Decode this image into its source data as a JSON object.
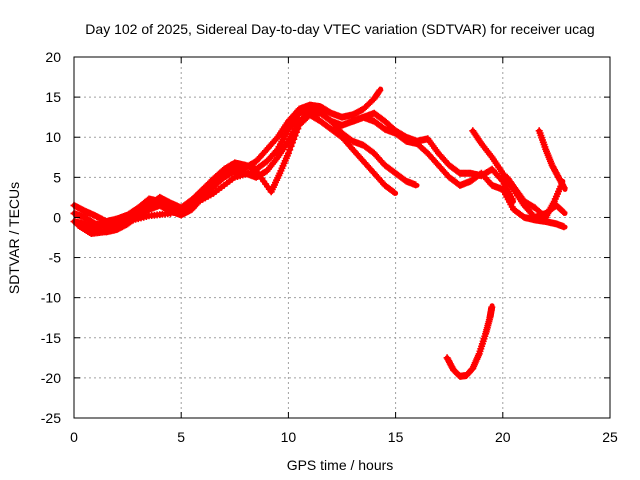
{
  "chart_data": {
    "type": "scatter",
    "title": "Day 102 of 2025, Sidereal Day-to-day VTEC variation (SDTVAR) for receiver ucag",
    "xlabel": "GPS time / hours",
    "ylabel": "SDTVAR / TECUs",
    "xlim": [
      0,
      25
    ],
    "ylim": [
      -25,
      20
    ],
    "xticks": [
      0,
      5,
      10,
      15,
      20,
      25
    ],
    "yticks": [
      -25,
      -20,
      -15,
      -10,
      -5,
      0,
      5,
      10,
      15,
      20
    ],
    "grid": true,
    "legend": "none",
    "marker": "plus",
    "series_color": "#ff0000",
    "series": [
      {
        "name": "track-a",
        "points": [
          [
            0.0,
            1.5
          ],
          [
            0.5,
            0.8
          ],
          [
            1.0,
            0.2
          ],
          [
            1.5,
            -0.5
          ],
          [
            2.0,
            -0.2
          ],
          [
            2.5,
            0.3
          ],
          [
            3.0,
            1.2
          ],
          [
            3.5,
            2.3
          ],
          [
            4.0,
            2.0
          ],
          [
            4.5,
            1.0
          ],
          [
            5.0,
            0.5
          ],
          [
            5.5,
            1.8
          ],
          [
            6.0,
            3.0
          ],
          [
            6.5,
            4.2
          ],
          [
            7.0,
            5.5
          ],
          [
            7.5,
            6.5
          ],
          [
            8.0,
            6.2
          ],
          [
            8.5,
            7.0
          ],
          [
            9.0,
            8.5
          ],
          [
            9.5,
            10.0
          ],
          [
            10.0,
            12.0
          ],
          [
            10.5,
            13.5
          ],
          [
            11.0,
            14.0
          ],
          [
            11.5,
            13.8
          ],
          [
            12.0,
            13.0
          ],
          [
            12.5,
            12.5
          ],
          [
            13.0,
            12.8
          ],
          [
            13.5,
            13.5
          ],
          [
            14.0,
            14.8
          ],
          [
            14.3,
            16.0
          ]
        ]
      },
      {
        "name": "track-b",
        "points": [
          [
            0.0,
            0.5
          ],
          [
            0.5,
            0.0
          ],
          [
            1.0,
            -0.8
          ],
          [
            1.5,
            -1.0
          ],
          [
            2.0,
            -0.6
          ],
          [
            2.5,
            0.0
          ],
          [
            3.0,
            0.5
          ],
          [
            3.5,
            1.5
          ],
          [
            4.0,
            2.5
          ],
          [
            4.5,
            1.8
          ],
          [
            5.0,
            1.2
          ],
          [
            5.5,
            2.2
          ],
          [
            6.0,
            3.5
          ],
          [
            6.5,
            4.8
          ],
          [
            7.0,
            6.0
          ],
          [
            7.5,
            6.8
          ],
          [
            8.0,
            6.5
          ],
          [
            8.5,
            6.0
          ],
          [
            9.0,
            7.0
          ],
          [
            9.5,
            8.5
          ],
          [
            10.0,
            11.0
          ],
          [
            10.5,
            13.0
          ],
          [
            11.0,
            13.5
          ],
          [
            11.5,
            13.2
          ],
          [
            12.0,
            12.0
          ],
          [
            12.5,
            11.5
          ],
          [
            13.0,
            12.0
          ],
          [
            13.5,
            12.5
          ],
          [
            14.0,
            12.0
          ],
          [
            14.5,
            11.0
          ],
          [
            15.0,
            10.5
          ],
          [
            15.5,
            9.5
          ],
          [
            16.0,
            9.2
          ],
          [
            16.5,
            8.0
          ],
          [
            17.0,
            6.5
          ],
          [
            17.5,
            5.0
          ],
          [
            18.0,
            4.0
          ],
          [
            18.5,
            4.5
          ],
          [
            19.0,
            5.5
          ],
          [
            19.5,
            4.0
          ],
          [
            20.0,
            3.5
          ],
          [
            20.5,
            1.0
          ],
          [
            21.0,
            0.0
          ],
          [
            21.5,
            -0.3
          ],
          [
            22.0,
            -0.5
          ],
          [
            22.5,
            -0.8
          ],
          [
            22.9,
            -1.2
          ]
        ]
      },
      {
        "name": "track-c",
        "points": [
          [
            0.0,
            -0.5
          ],
          [
            0.5,
            -0.8
          ],
          [
            1.0,
            -1.5
          ],
          [
            1.5,
            -1.8
          ],
          [
            2.0,
            -1.5
          ],
          [
            2.5,
            -0.8
          ],
          [
            3.0,
            0.2
          ],
          [
            3.5,
            1.0
          ],
          [
            4.0,
            1.5
          ],
          [
            4.5,
            0.8
          ],
          [
            5.0,
            0.3
          ],
          [
            5.5,
            1.0
          ],
          [
            6.0,
            2.5
          ],
          [
            6.5,
            3.8
          ],
          [
            7.0,
            5.0
          ],
          [
            7.5,
            5.8
          ],
          [
            8.0,
            5.5
          ],
          [
            8.5,
            5.0
          ],
          [
            9.0,
            5.8
          ],
          [
            9.5,
            7.5
          ],
          [
            10.0,
            9.5
          ],
          [
            10.5,
            12.0
          ],
          [
            11.0,
            13.0
          ],
          [
            11.5,
            13.0
          ],
          [
            12.0,
            12.0
          ],
          [
            12.5,
            10.5
          ],
          [
            13.0,
            9.5
          ],
          [
            13.5,
            9.0
          ],
          [
            14.0,
            8.0
          ],
          [
            14.5,
            6.5
          ],
          [
            15.0,
            5.5
          ],
          [
            15.5,
            4.5
          ],
          [
            16.0,
            4.0
          ]
        ]
      },
      {
        "name": "track-d",
        "points": [
          [
            0.2,
            -1.0
          ],
          [
            0.8,
            -2.0
          ],
          [
            1.4,
            -1.8
          ],
          [
            2.0,
            -1.2
          ],
          [
            2.5,
            -0.5
          ],
          [
            3.5,
            0.2
          ],
          [
            4.5,
            0.5
          ],
          [
            5.5,
            1.5
          ],
          [
            6.5,
            3.0
          ],
          [
            7.5,
            5.0
          ],
          [
            8.5,
            5.8
          ],
          [
            9.2,
            3.2
          ],
          [
            9.6,
            5.5
          ],
          [
            10.0,
            8.0
          ],
          [
            10.5,
            11.5
          ],
          [
            11.0,
            12.8
          ],
          [
            11.5,
            12.0
          ],
          [
            12.0,
            11.0
          ],
          [
            12.5,
            10.0
          ],
          [
            13.0,
            8.5
          ],
          [
            13.5,
            7.0
          ],
          [
            14.0,
            5.5
          ],
          [
            14.5,
            4.0
          ],
          [
            15.0,
            3.0
          ]
        ]
      },
      {
        "name": "track-e",
        "points": [
          [
            13.0,
            12.0
          ],
          [
            13.5,
            12.5
          ],
          [
            14.0,
            13.0
          ],
          [
            14.5,
            12.0
          ],
          [
            15.0,
            10.8
          ],
          [
            15.5,
            10.0
          ],
          [
            16.0,
            9.5
          ],
          [
            16.5,
            9.8
          ],
          [
            17.0,
            8.0
          ],
          [
            17.5,
            6.5
          ],
          [
            18.0,
            5.5
          ],
          [
            18.5,
            5.5
          ],
          [
            19.0,
            5.2
          ],
          [
            19.5,
            6.0
          ],
          [
            20.0,
            4.5
          ],
          [
            20.5,
            2.0
          ]
        ]
      },
      {
        "name": "track-f",
        "points": [
          [
            18.6,
            10.8
          ],
          [
            19.0,
            9.2
          ],
          [
            19.5,
            7.5
          ],
          [
            20.0,
            5.5
          ],
          [
            20.5,
            3.5
          ],
          [
            21.0,
            1.5
          ],
          [
            21.5,
            0.0
          ],
          [
            22.0,
            0.5
          ],
          [
            22.5,
            1.5
          ],
          [
            22.9,
            0.5
          ]
        ]
      },
      {
        "name": "track-g",
        "points": [
          [
            21.7,
            10.8
          ],
          [
            22.0,
            8.5
          ],
          [
            22.3,
            6.5
          ],
          [
            22.6,
            5.0
          ],
          [
            22.9,
            3.5
          ]
        ]
      },
      {
        "name": "track-h",
        "points": [
          [
            20.2,
            5.0
          ],
          [
            20.6,
            3.5
          ],
          [
            21.0,
            2.0
          ],
          [
            21.5,
            1.2
          ],
          [
            22.0,
            0.0
          ],
          [
            22.4,
            2.0
          ],
          [
            22.8,
            4.5
          ]
        ]
      },
      {
        "name": "track-i",
        "points": [
          [
            17.4,
            -17.5
          ],
          [
            17.7,
            -19.0
          ],
          [
            18.0,
            -19.8
          ],
          [
            18.3,
            -19.7
          ],
          [
            18.6,
            -18.8
          ],
          [
            18.9,
            -17.0
          ],
          [
            19.2,
            -14.5
          ],
          [
            19.4,
            -12.5
          ],
          [
            19.5,
            -11.0
          ]
        ]
      }
    ]
  }
}
